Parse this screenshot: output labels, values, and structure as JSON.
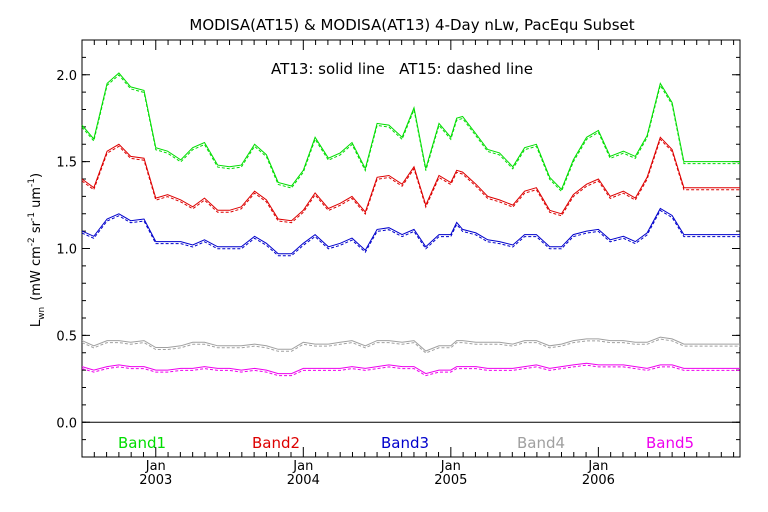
{
  "chart_data": {
    "type": "line",
    "title": "MODISA(AT15) & MODISA(AT13) 4-Day nLw, PacEqu Subset",
    "annotation": "AT13: solid line   AT15: dashed line",
    "ylabel_main": "L",
    "ylabel_sub": "wn",
    "ylabel_rest": "(mW cm",
    "ylabel_e1": "-2",
    "ylabel_mid": " sr",
    "ylabel_e2": "-1",
    "ylabel_mid2": " um",
    "ylabel_e3": "-1",
    "ylabel_end": ")",
    "ylim": [
      -0.2,
      2.2
    ],
    "yticks": [
      0.0,
      0.5,
      1.0,
      1.5,
      2.0
    ],
    "ytick_labels": [
      "0.0",
      "0.5",
      "1.0",
      "1.5",
      "2.0"
    ],
    "xlim": [
      2002.5,
      2006.96
    ],
    "xticks": [
      {
        "x": 2003.0,
        "month": "Jan",
        "year": "2003"
      },
      {
        "x": 2004.0,
        "month": "Jan",
        "year": "2004"
      },
      {
        "x": 2005.0,
        "month": "Jan",
        "year": "2005"
      },
      {
        "x": 2006.0,
        "month": "Jan",
        "year": "2006"
      }
    ],
    "zero_line": 0.0,
    "legend_placement": "bottom-inside",
    "x": [
      2002.5,
      2002.58,
      2002.67,
      2002.75,
      2002.83,
      2002.92,
      2003.0,
      2003.08,
      2003.17,
      2003.25,
      2003.33,
      2003.42,
      2003.5,
      2003.58,
      2003.67,
      2003.75,
      2003.83,
      2003.92,
      2004.0,
      2004.08,
      2004.17,
      2004.25,
      2004.33,
      2004.42,
      2004.5,
      2004.58,
      2004.67,
      2004.75,
      2004.83,
      2004.92,
      2005.0,
      2005.04,
      2005.08,
      2005.17,
      2005.25,
      2005.33,
      2005.42,
      2005.5,
      2005.58,
      2005.67,
      2005.75,
      2005.83,
      2005.92,
      2006.0,
      2006.08,
      2006.17,
      2006.25,
      2006.33,
      2006.42,
      2006.5,
      2006.58,
      2006.67,
      2006.75,
      2006.83,
      2006.92,
      2006.96
    ],
    "series": [
      {
        "name": "Band1",
        "color": "#00dd00",
        "values": [
          1.71,
          1.63,
          1.95,
          2.01,
          1.93,
          1.91,
          1.58,
          1.56,
          1.51,
          1.58,
          1.61,
          1.48,
          1.47,
          1.48,
          1.6,
          1.54,
          1.38,
          1.36,
          1.45,
          1.64,
          1.52,
          1.55,
          1.61,
          1.46,
          1.72,
          1.71,
          1.64,
          1.81,
          1.46,
          1.72,
          1.64,
          1.75,
          1.76,
          1.66,
          1.57,
          1.55,
          1.47,
          1.58,
          1.6,
          1.41,
          1.34,
          1.51,
          1.64,
          1.68,
          1.53,
          1.56,
          1.53,
          1.65,
          1.95,
          1.84,
          1.5,
          1.5,
          1.5,
          1.5,
          1.5,
          1.5
        ]
      },
      {
        "name": "Band2",
        "color": "#dd0000",
        "values": [
          1.4,
          1.35,
          1.56,
          1.6,
          1.53,
          1.52,
          1.29,
          1.31,
          1.28,
          1.24,
          1.29,
          1.22,
          1.22,
          1.24,
          1.33,
          1.28,
          1.17,
          1.16,
          1.22,
          1.32,
          1.23,
          1.26,
          1.3,
          1.21,
          1.41,
          1.42,
          1.37,
          1.47,
          1.25,
          1.42,
          1.38,
          1.45,
          1.44,
          1.37,
          1.3,
          1.28,
          1.25,
          1.33,
          1.35,
          1.22,
          1.2,
          1.31,
          1.37,
          1.4,
          1.3,
          1.33,
          1.29,
          1.41,
          1.64,
          1.57,
          1.35,
          1.35,
          1.35,
          1.35,
          1.35,
          1.35
        ]
      },
      {
        "name": "Band3",
        "color": "#0000cc",
        "values": [
          1.1,
          1.07,
          1.17,
          1.2,
          1.16,
          1.17,
          1.04,
          1.04,
          1.04,
          1.02,
          1.05,
          1.01,
          1.01,
          1.01,
          1.07,
          1.03,
          0.97,
          0.97,
          1.03,
          1.08,
          1.01,
          1.03,
          1.06,
          0.99,
          1.11,
          1.12,
          1.08,
          1.11,
          1.01,
          1.08,
          1.08,
          1.15,
          1.11,
          1.09,
          1.05,
          1.04,
          1.02,
          1.08,
          1.08,
          1.01,
          1.01,
          1.08,
          1.1,
          1.11,
          1.05,
          1.07,
          1.04,
          1.09,
          1.23,
          1.19,
          1.08,
          1.08,
          1.08,
          1.08,
          1.08,
          1.08
        ]
      },
      {
        "name": "Band4",
        "color": "#a0a0a0",
        "values": [
          0.47,
          0.44,
          0.47,
          0.47,
          0.46,
          0.47,
          0.43,
          0.43,
          0.44,
          0.46,
          0.46,
          0.44,
          0.44,
          0.44,
          0.45,
          0.44,
          0.42,
          0.42,
          0.46,
          0.45,
          0.45,
          0.46,
          0.47,
          0.44,
          0.47,
          0.47,
          0.46,
          0.47,
          0.41,
          0.44,
          0.44,
          0.47,
          0.47,
          0.46,
          0.46,
          0.46,
          0.45,
          0.47,
          0.47,
          0.44,
          0.45,
          0.47,
          0.48,
          0.48,
          0.47,
          0.47,
          0.46,
          0.46,
          0.49,
          0.48,
          0.45,
          0.45,
          0.45,
          0.45,
          0.45,
          0.45
        ]
      },
      {
        "name": "Band5",
        "color": "#ee00ee",
        "values": [
          0.32,
          0.3,
          0.32,
          0.33,
          0.32,
          0.32,
          0.3,
          0.3,
          0.31,
          0.31,
          0.32,
          0.31,
          0.31,
          0.3,
          0.31,
          0.3,
          0.28,
          0.28,
          0.31,
          0.31,
          0.31,
          0.31,
          0.32,
          0.31,
          0.32,
          0.33,
          0.32,
          0.32,
          0.28,
          0.3,
          0.3,
          0.32,
          0.32,
          0.32,
          0.31,
          0.31,
          0.31,
          0.32,
          0.33,
          0.31,
          0.32,
          0.33,
          0.34,
          0.33,
          0.33,
          0.33,
          0.32,
          0.31,
          0.33,
          0.33,
          0.31,
          0.31,
          0.31,
          0.31,
          0.31,
          0.31
        ]
      }
    ]
  }
}
